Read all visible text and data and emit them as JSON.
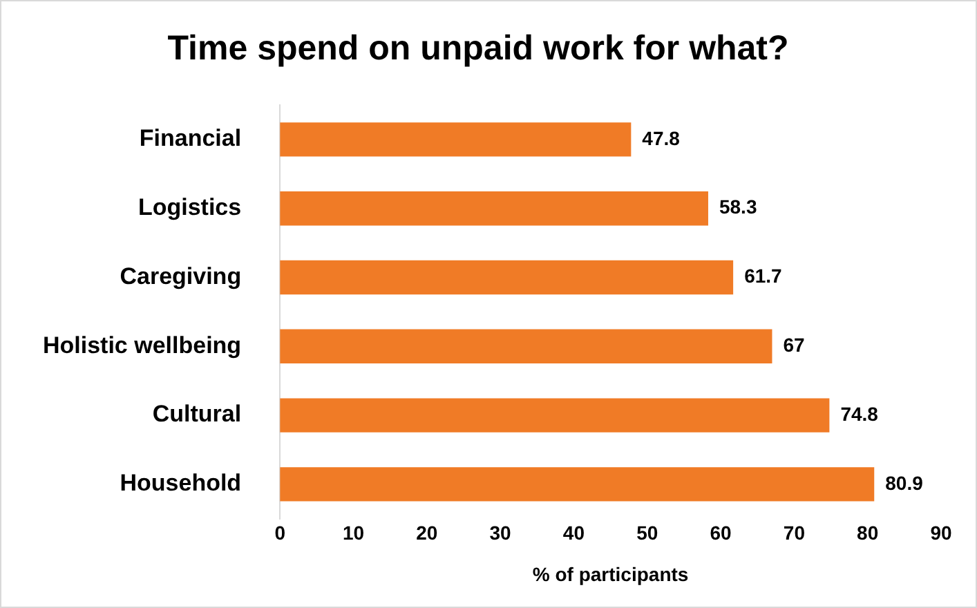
{
  "chart_data": {
    "type": "bar",
    "title": "Time spend on unpaid work for what?",
    "xlabel": "% of participants",
    "orientation": "horizontal",
    "categories": [
      "Financial",
      "Logistics",
      "Caregiving",
      "Holistic wellbeing",
      "Cultural",
      "Household"
    ],
    "values": [
      47.8,
      58.3,
      61.7,
      67,
      74.8,
      80.9
    ],
    "color": "#f07b26",
    "xlim": [
      0,
      90
    ],
    "xticks": [
      0,
      10,
      20,
      30,
      40,
      50,
      60,
      70,
      80,
      90
    ],
    "grid": false,
    "data_labels": true
  }
}
